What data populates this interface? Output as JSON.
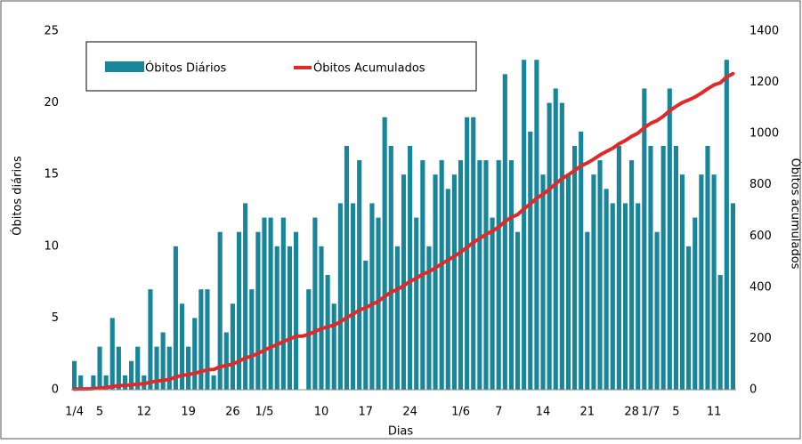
{
  "chart_data": {
    "type": "combo",
    "x_label": "Dias",
    "y_label": "Óbitos diários",
    "y2_label": "Óbitos acumulados",
    "categories": [
      "1/4",
      null,
      null,
      null,
      "5",
      null,
      null,
      null,
      null,
      null,
      null,
      "12",
      null,
      null,
      null,
      null,
      null,
      null,
      "19",
      null,
      null,
      null,
      null,
      null,
      null,
      "26",
      null,
      null,
      null,
      null,
      "1/5",
      null,
      null,
      null,
      null,
      null,
      null,
      null,
      null,
      "10",
      null,
      null,
      null,
      null,
      null,
      null,
      "17",
      null,
      null,
      null,
      null,
      null,
      null,
      "24",
      null,
      null,
      null,
      null,
      null,
      null,
      null,
      "1/6",
      null,
      null,
      null,
      null,
      null,
      "7",
      null,
      null,
      null,
      null,
      null,
      null,
      "14",
      null,
      null,
      null,
      null,
      null,
      null,
      "21",
      null,
      null,
      null,
      null,
      null,
      null,
      "28",
      null,
      null,
      "1/7",
      null,
      null,
      null,
      "5",
      null,
      null,
      null,
      null,
      null,
      "11",
      null,
      null,
      null
    ],
    "series": [
      {
        "name": "Óbitos Diários",
        "type": "bar",
        "color": "#17869a",
        "values": [
          2,
          1,
          0,
          1,
          3,
          1,
          5,
          3,
          1,
          2,
          3,
          1,
          7,
          3,
          4,
          3,
          10,
          6,
          3,
          5,
          7,
          7,
          1,
          11,
          4,
          6,
          11,
          13,
          7,
          11,
          12,
          12,
          10,
          12,
          10,
          11,
          0,
          7,
          12,
          10,
          8,
          6,
          13,
          17,
          13,
          16,
          9,
          13,
          12,
          19,
          17,
          10,
          15,
          17,
          12,
          16,
          10,
          15,
          16,
          14,
          15,
          16,
          19,
          19,
          16,
          16,
          12,
          16,
          22,
          16,
          11,
          23,
          18,
          23,
          15,
          20,
          21,
          20,
          15,
          17,
          18,
          11,
          15,
          16,
          14,
          13,
          17,
          13,
          16,
          13,
          21,
          17,
          11,
          17,
          21,
          17,
          15,
          10,
          12,
          15,
          17,
          15,
          8,
          23,
          13
        ]
      },
      {
        "name": "Óbitos Acumulados",
        "type": "line",
        "axis": "y2",
        "color": "#e02a2a",
        "values": [
          2,
          3,
          3,
          4,
          7,
          8,
          13,
          16,
          17,
          19,
          22,
          23,
          30,
          33,
          37,
          40,
          50,
          56,
          59,
          64,
          71,
          78,
          79,
          90,
          94,
          100,
          111,
          124,
          131,
          142,
          154,
          166,
          176,
          188,
          198,
          209,
          209,
          216,
          228,
          238,
          246,
          252,
          265,
          282,
          295,
          311,
          320,
          333,
          345,
          364,
          381,
          391,
          406,
          423,
          435,
          451,
          461,
          476,
          492,
          506,
          521,
          537,
          556,
          575,
          591,
          607,
          619,
          635,
          657,
          673,
          684,
          707,
          725,
          748,
          763,
          783,
          804,
          824,
          839,
          856,
          874,
          885,
          900,
          916,
          930,
          943,
          960,
          973,
          989,
          1002,
          1023,
          1040,
          1051,
          1068,
          1089,
          1106,
          1121,
          1131,
          1143,
          1158,
          1175,
          1190,
          1198,
          1221,
          1234
        ]
      }
    ],
    "ylim": [
      0,
      25
    ],
    "yticks": [
      0,
      5,
      10,
      15,
      20,
      25
    ],
    "y2lim": [
      0,
      1400
    ],
    "y2ticks": [
      0,
      200,
      400,
      600,
      800,
      1000,
      1200,
      1400
    ]
  }
}
